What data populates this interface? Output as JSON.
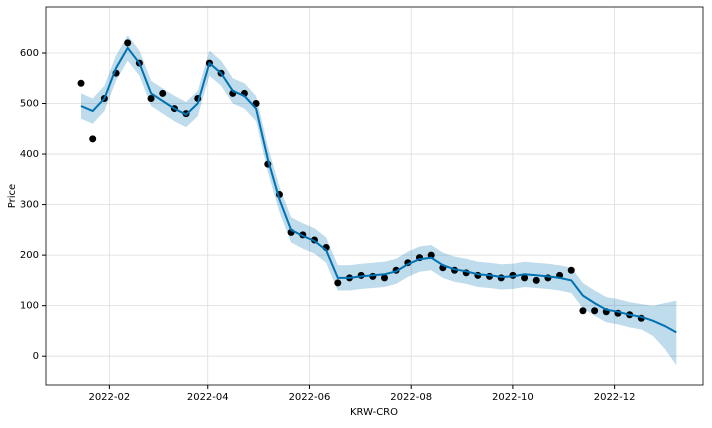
{
  "chart_data": {
    "type": "forecast",
    "xlabel": "KRW-CRO",
    "ylabel": "Price",
    "x": [
      "2022-01-15",
      "2022-01-22",
      "2022-01-29",
      "2022-02-05",
      "2022-02-12",
      "2022-02-19",
      "2022-02-26",
      "2022-03-05",
      "2022-03-12",
      "2022-03-19",
      "2022-03-26",
      "2022-04-02",
      "2022-04-09",
      "2022-04-16",
      "2022-04-23",
      "2022-04-30",
      "2022-05-07",
      "2022-05-14",
      "2022-05-21",
      "2022-05-28",
      "2022-06-04",
      "2022-06-11",
      "2022-06-18",
      "2022-06-25",
      "2022-07-02",
      "2022-07-09",
      "2022-07-16",
      "2022-07-23",
      "2022-07-30",
      "2022-08-06",
      "2022-08-13",
      "2022-08-20",
      "2022-08-27",
      "2022-09-03",
      "2022-09-10",
      "2022-09-17",
      "2022-09-24",
      "2022-10-01",
      "2022-10-08",
      "2022-10-15",
      "2022-10-22",
      "2022-10-29",
      "2022-11-05",
      "2022-11-12",
      "2022-11-19",
      "2022-11-26",
      "2022-12-03",
      "2022-12-10",
      "2022-12-17",
      "2022-12-24",
      "2022-12-31",
      "2023-01-07"
    ],
    "observed": {
      "color": "#000000",
      "values": [
        540,
        430,
        510,
        560,
        620,
        580,
        510,
        520,
        490,
        480,
        510,
        580,
        560,
        520,
        520,
        500,
        380,
        320,
        245,
        240,
        230,
        215,
        145,
        155,
        160,
        158,
        155,
        170,
        185,
        195,
        200,
        175,
        170,
        165,
        160,
        158,
        155,
        160,
        155,
        150,
        155,
        160,
        170,
        90,
        90,
        88,
        85,
        82,
        75,
        null,
        null,
        null
      ]
    },
    "forecast": {
      "color": "#0072B2",
      "values": [
        495,
        485,
        510,
        570,
        610,
        580,
        520,
        505,
        490,
        478,
        500,
        580,
        560,
        525,
        515,
        490,
        390,
        310,
        250,
        238,
        228,
        210,
        155,
        155,
        158,
        160,
        162,
        168,
        182,
        192,
        195,
        180,
        172,
        168,
        162,
        160,
        157,
        158,
        162,
        160,
        158,
        155,
        150,
        120,
        105,
        92,
        88,
        82,
        78,
        70,
        60,
        47
      ]
    },
    "band": {
      "color": "#0072B2",
      "lower": [
        470,
        460,
        485,
        545,
        585,
        555,
        495,
        480,
        465,
        453,
        475,
        555,
        535,
        500,
        490,
        465,
        365,
        285,
        225,
        213,
        203,
        185,
        130,
        130,
        133,
        135,
        137,
        143,
        157,
        167,
        170,
        155,
        147,
        143,
        137,
        135,
        132,
        133,
        137,
        135,
        133,
        130,
        125,
        95,
        80,
        67,
        63,
        57,
        53,
        40,
        15,
        -18
      ],
      "upper": [
        520,
        510,
        535,
        595,
        635,
        605,
        545,
        530,
        515,
        503,
        525,
        605,
        585,
        550,
        540,
        515,
        415,
        335,
        275,
        263,
        253,
        235,
        180,
        180,
        183,
        185,
        187,
        193,
        207,
        217,
        220,
        205,
        197,
        193,
        187,
        185,
        182,
        183,
        187,
        185,
        183,
        180,
        175,
        145,
        130,
        117,
        113,
        107,
        103,
        100,
        105,
        110
      ]
    },
    "xlim": [
      "2021-12-25",
      "2023-01-23"
    ],
    "xticks": [
      {
        "value": "2022-02-01",
        "label": "2022-02"
      },
      {
        "value": "2022-04-01",
        "label": "2022-04"
      },
      {
        "value": "2022-06-01",
        "label": "2022-06"
      },
      {
        "value": "2022-08-01",
        "label": "2022-08"
      },
      {
        "value": "2022-10-01",
        "label": "2022-10"
      },
      {
        "value": "2022-12-01",
        "label": "2022-12"
      }
    ],
    "ylim": [
      -57,
      691
    ],
    "yticks": [
      0,
      100,
      200,
      300,
      400,
      500,
      600
    ],
    "grid": true
  }
}
